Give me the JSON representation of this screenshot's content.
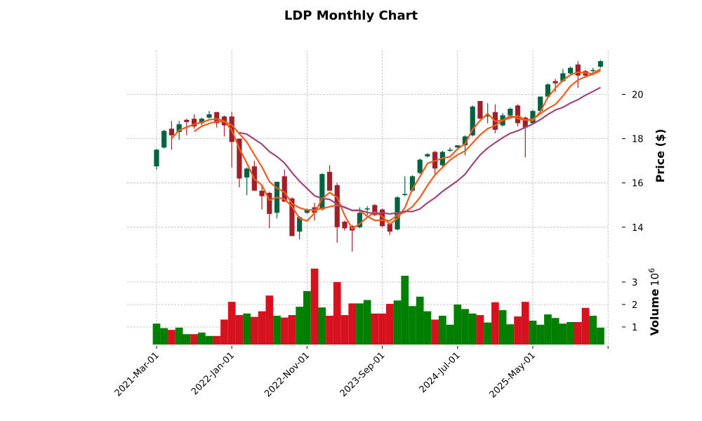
{
  "chart_data": {
    "type": "candlestick",
    "title": "LDP Monthly Chart",
    "ylabel": "Price ($)",
    "volume_label": "Volume",
    "volume_multiplier_label": "10",
    "volume_multiplier_exp": "6",
    "ylim": [
      12.5,
      22.0
    ],
    "volume_ylim": [
      0,
      3.7
    ],
    "y_ticks": [
      14,
      16,
      18,
      20
    ],
    "volume_ticks": [
      1,
      2,
      3
    ],
    "x_tick_labels": [
      {
        "label": "2021-Mar-01",
        "index": 0
      },
      {
        "label": "2022-Jan-01",
        "index": 10
      },
      {
        "label": "2022-Nov-01",
        "index": 20
      },
      {
        "label": "2023-Sep-01",
        "index": 30
      },
      {
        "label": "2024-Jul-01",
        "index": 40
      },
      {
        "label": "2025-May-01",
        "index": 50
      },
      {
        "label": "",
        "index": 60
      }
    ],
    "grid": true,
    "colors": {
      "up": "#006340",
      "down": "#a01f2a",
      "volume_up": "#007f00",
      "volume_down": "#d6121f",
      "ma_short": "#f05c1a",
      "ma_mid": "#f05c1a",
      "ma_long": "#a0457e"
    },
    "moving_averages": [
      {
        "name": "MA3",
        "period": 3,
        "color_key": "ma_short"
      },
      {
        "name": "MA6",
        "period": 6,
        "color_key": "ma_mid"
      },
      {
        "name": "MA12",
        "period": 12,
        "color_key": "ma_long"
      }
    ],
    "candles": [
      {
        "date": "2021-03",
        "o": 16.75,
        "h": 17.55,
        "l": 16.6,
        "c": 17.5,
        "v": 1.15,
        "vup": true
      },
      {
        "date": "2021-04",
        "o": 17.6,
        "h": 18.4,
        "l": 17.55,
        "c": 18.35,
        "v": 0.95,
        "vup": true
      },
      {
        "date": "2021-05",
        "o": 18.45,
        "h": 18.8,
        "l": 17.5,
        "c": 18.15,
        "v": 0.87,
        "vup": false
      },
      {
        "date": "2021-06",
        "o": 18.3,
        "h": 18.8,
        "l": 17.95,
        "c": 18.65,
        "v": 0.97,
        "vup": true
      },
      {
        "date": "2021-07",
        "o": 18.85,
        "h": 18.9,
        "l": 18.15,
        "c": 18.75,
        "v": 0.68,
        "vup": true
      },
      {
        "date": "2021-08",
        "o": 18.9,
        "h": 19.1,
        "l": 18.45,
        "c": 18.55,
        "v": 0.68,
        "vup": false
      },
      {
        "date": "2021-09",
        "o": 18.7,
        "h": 18.95,
        "l": 18.6,
        "c": 18.9,
        "v": 0.75,
        "vup": true
      },
      {
        "date": "2021-10",
        "o": 18.95,
        "h": 19.25,
        "l": 18.9,
        "c": 19.1,
        "v": 0.6,
        "vup": true
      },
      {
        "date": "2021-11",
        "o": 19.2,
        "h": 19.2,
        "l": 18.5,
        "c": 18.7,
        "v": 0.6,
        "vup": false
      },
      {
        "date": "2021-12",
        "o": 19.0,
        "h": 19.05,
        "l": 18.1,
        "c": 18.6,
        "v": 1.33,
        "vup": false
      },
      {
        "date": "2022-01",
        "o": 19.0,
        "h": 19.2,
        "l": 16.7,
        "c": 17.85,
        "v": 2.12,
        "vup": false
      },
      {
        "date": "2022-02",
        "o": 18.0,
        "h": 18.0,
        "l": 15.8,
        "c": 16.2,
        "v": 1.53,
        "vup": false
      },
      {
        "date": "2022-03",
        "o": 16.25,
        "h": 16.7,
        "l": 15.45,
        "c": 16.65,
        "v": 1.6,
        "vup": true
      },
      {
        "date": "2022-04",
        "o": 16.75,
        "h": 17.0,
        "l": 15.65,
        "c": 15.65,
        "v": 1.45,
        "vup": false
      },
      {
        "date": "2022-05",
        "o": 15.65,
        "h": 15.9,
        "l": 14.8,
        "c": 15.4,
        "v": 1.7,
        "vup": false
      },
      {
        "date": "2022-06",
        "o": 15.55,
        "h": 15.6,
        "l": 13.95,
        "c": 14.6,
        "v": 2.4,
        "vup": false
      },
      {
        "date": "2022-07",
        "o": 14.65,
        "h": 16.05,
        "l": 14.4,
        "c": 16.05,
        "v": 1.5,
        "vup": true
      },
      {
        "date": "2022-08",
        "o": 16.3,
        "h": 16.6,
        "l": 15.15,
        "c": 15.15,
        "v": 1.42,
        "vup": false
      },
      {
        "date": "2022-09",
        "o": 15.3,
        "h": 15.35,
        "l": 13.6,
        "c": 13.6,
        "v": 1.53,
        "vup": false
      },
      {
        "date": "2022-10",
        "o": 13.8,
        "h": 14.5,
        "l": 13.45,
        "c": 14.45,
        "v": 1.9,
        "vup": true
      },
      {
        "date": "2022-11",
        "o": 14.65,
        "h": 14.85,
        "l": 14.6,
        "c": 14.8,
        "v": 2.6,
        "vup": true
      },
      {
        "date": "2022-12",
        "o": 14.9,
        "h": 15.1,
        "l": 14.3,
        "c": 14.65,
        "v": 3.6,
        "vup": false
      },
      {
        "date": "2023-01",
        "o": 14.8,
        "h": 16.45,
        "l": 14.75,
        "c": 16.4,
        "v": 1.87,
        "vup": true
      },
      {
        "date": "2023-02",
        "o": 16.5,
        "h": 16.8,
        "l": 15.65,
        "c": 15.65,
        "v": 1.5,
        "vup": false
      },
      {
        "date": "2023-03",
        "o": 15.9,
        "h": 16.0,
        "l": 13.3,
        "c": 14.0,
        "v": 3.0,
        "vup": false
      },
      {
        "date": "2023-04",
        "o": 14.25,
        "h": 14.3,
        "l": 13.85,
        "c": 13.95,
        "v": 1.53,
        "vup": false
      },
      {
        "date": "2023-05",
        "o": 14.05,
        "h": 14.1,
        "l": 12.9,
        "c": 13.85,
        "v": 2.05,
        "vup": false
      },
      {
        "date": "2023-06",
        "o": 14.0,
        "h": 14.9,
        "l": 13.95,
        "c": 14.65,
        "v": 2.05,
        "vup": true
      },
      {
        "date": "2023-07",
        "o": 14.8,
        "h": 14.95,
        "l": 14.55,
        "c": 14.85,
        "v": 2.2,
        "vup": true
      },
      {
        "date": "2023-08",
        "o": 15.0,
        "h": 15.05,
        "l": 14.5,
        "c": 14.55,
        "v": 1.6,
        "vup": false
      },
      {
        "date": "2023-09",
        "o": 14.8,
        "h": 14.85,
        "l": 14.0,
        "c": 14.05,
        "v": 1.6,
        "vup": false
      },
      {
        "date": "2023-10",
        "o": 14.15,
        "h": 14.2,
        "l": 13.65,
        "c": 13.8,
        "v": 2.03,
        "vup": false
      },
      {
        "date": "2023-11",
        "o": 13.9,
        "h": 15.4,
        "l": 13.85,
        "c": 15.35,
        "v": 2.18,
        "vup": true
      },
      {
        "date": "2023-12",
        "o": 15.45,
        "h": 16.3,
        "l": 15.4,
        "c": 15.5,
        "v": 3.28,
        "vup": true
      },
      {
        "date": "2024-01",
        "o": 15.65,
        "h": 16.35,
        "l": 15.6,
        "c": 16.3,
        "v": 1.93,
        "vup": true
      },
      {
        "date": "2024-02",
        "o": 16.45,
        "h": 17.1,
        "l": 16.4,
        "c": 17.05,
        "v": 2.35,
        "vup": true
      },
      {
        "date": "2024-03",
        "o": 17.2,
        "h": 17.35,
        "l": 17.15,
        "c": 17.3,
        "v": 1.7,
        "vup": true
      },
      {
        "date": "2024-04",
        "o": 17.4,
        "h": 17.45,
        "l": 16.3,
        "c": 16.65,
        "v": 1.33,
        "vup": false
      },
      {
        "date": "2024-05",
        "o": 16.8,
        "h": 17.45,
        "l": 16.75,
        "c": 17.4,
        "v": 1.5,
        "vup": true
      },
      {
        "date": "2024-06",
        "o": 17.45,
        "h": 17.6,
        "l": 17.4,
        "c": 17.5,
        "v": 1.1,
        "vup": true
      },
      {
        "date": "2024-07",
        "o": 17.6,
        "h": 17.7,
        "l": 17.55,
        "c": 17.7,
        "v": 2.0,
        "vup": true
      },
      {
        "date": "2024-08",
        "o": 17.7,
        "h": 18.15,
        "l": 17.25,
        "c": 18.1,
        "v": 1.8,
        "vup": true
      },
      {
        "date": "2024-09",
        "o": 18.15,
        "h": 19.5,
        "l": 18.1,
        "c": 19.45,
        "v": 1.6,
        "vup": true
      },
      {
        "date": "2024-10",
        "o": 19.7,
        "h": 19.7,
        "l": 18.9,
        "c": 18.9,
        "v": 1.53,
        "vup": false
      },
      {
        "date": "2024-11",
        "o": 19.0,
        "h": 19.6,
        "l": 18.7,
        "c": 19.05,
        "v": 1.2,
        "vup": true
      },
      {
        "date": "2024-12",
        "o": 19.2,
        "h": 19.55,
        "l": 18.25,
        "c": 18.4,
        "v": 2.1,
        "vup": false
      },
      {
        "date": "2025-01",
        "o": 18.6,
        "h": 19.15,
        "l": 18.55,
        "c": 19.05,
        "v": 1.75,
        "vup": true
      },
      {
        "date": "2025-02",
        "o": 19.05,
        "h": 19.4,
        "l": 18.95,
        "c": 19.35,
        "v": 1.12,
        "vup": true
      },
      {
        "date": "2025-03",
        "o": 19.5,
        "h": 19.55,
        "l": 18.55,
        "c": 18.7,
        "v": 1.47,
        "vup": false
      },
      {
        "date": "2025-04",
        "o": 18.95,
        "h": 19.0,
        "l": 17.15,
        "c": 18.5,
        "v": 2.12,
        "vup": false
      },
      {
        "date": "2025-05",
        "o": 18.7,
        "h": 19.3,
        "l": 18.65,
        "c": 19.25,
        "v": 1.28,
        "vup": true
      },
      {
        "date": "2025-06",
        "o": 19.25,
        "h": 19.9,
        "l": 19.2,
        "c": 19.9,
        "v": 1.1,
        "vup": true
      },
      {
        "date": "2025-07",
        "o": 19.9,
        "h": 20.5,
        "l": 19.85,
        "c": 20.45,
        "v": 1.56,
        "vup": true
      },
      {
        "date": "2025-08",
        "o": 20.6,
        "h": 20.7,
        "l": 20.1,
        "c": 20.5,
        "v": 1.4,
        "vup": true
      },
      {
        "date": "2025-09",
        "o": 20.6,
        "h": 21.15,
        "l": 20.55,
        "c": 20.95,
        "v": 1.15,
        "vup": true
      },
      {
        "date": "2025-10",
        "o": 20.95,
        "h": 21.25,
        "l": 20.9,
        "c": 21.2,
        "v": 1.22,
        "vup": true
      },
      {
        "date": "2025-11",
        "o": 21.35,
        "h": 21.5,
        "l": 20.3,
        "c": 20.85,
        "v": 1.22,
        "vup": false
      },
      {
        "date": "2025-12",
        "o": 21.05,
        "h": 21.1,
        "l": 20.75,
        "c": 20.85,
        "v": 1.85,
        "vup": false
      },
      {
        "date": "2026-01",
        "o": 21.05,
        "h": 21.2,
        "l": 20.95,
        "c": 21.1,
        "v": 1.5,
        "vup": true
      },
      {
        "date": "2026-02",
        "o": 21.25,
        "h": 21.55,
        "l": 21.2,
        "c": 21.5,
        "v": 0.97,
        "vup": true
      }
    ]
  }
}
